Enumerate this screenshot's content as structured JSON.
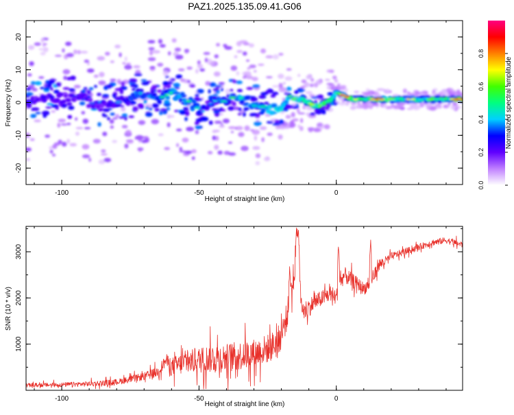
{
  "title": "PAZ1.2025.135.09.41.G06",
  "spectrogram": {
    "xlabel": "Height of straight line (km)",
    "ylabel": "Frequency (Hz)",
    "xlim": [
      -113,
      46
    ],
    "ylim": [
      -25,
      25
    ],
    "xticks": [
      -100,
      -50,
      0
    ],
    "yticks": [
      -20,
      -10,
      0,
      10,
      20
    ],
    "colorbar": {
      "label": "Normalized spectral amplitude",
      "range": [
        0,
        1
      ],
      "ticks": [
        "0.0",
        "0.2",
        "0.4",
        "0.6",
        "0.8"
      ],
      "ticks_values": [
        0,
        0.2,
        0.4,
        0.6,
        0.8
      ],
      "colors": [
        "#ffffff",
        "#c080ff",
        "#6000ff",
        "#0000ff",
        "#00d0ff",
        "#00ff80",
        "#40ff00",
        "#ffff00",
        "#ff8000",
        "#ff0000",
        "#ff0080"
      ]
    },
    "ridge": {
      "x": [
        -112,
        -105,
        -100,
        -95,
        -90,
        -85,
        -80,
        -75,
        -72,
        -65,
        -60,
        -57,
        -53,
        -50,
        -47,
        -43,
        -40,
        -37,
        -33,
        -30,
        -27,
        -25,
        -22,
        -20,
        -17,
        -15,
        -12,
        -10,
        -8,
        -6,
        -4,
        -2,
        0,
        3,
        6,
        10,
        15,
        20,
        25,
        30,
        35,
        40,
        46
      ],
      "y": [
        0,
        2,
        1,
        2,
        0,
        -1,
        0,
        1,
        3,
        1,
        3,
        2,
        0,
        -2,
        -1,
        1,
        0,
        2,
        1,
        -1,
        -1,
        -2,
        -2,
        -2,
        2,
        1,
        1,
        0,
        -1,
        -1,
        0,
        1,
        3,
        2,
        1,
        1,
        1,
        1,
        1,
        1,
        1,
        1,
        1
      ],
      "amplitude": [
        0.3,
        0.3,
        0.3,
        0.3,
        0.3,
        0.3,
        0.35,
        0.4,
        0.45,
        0.4,
        0.5,
        0.5,
        0.45,
        0.45,
        0.4,
        0.4,
        0.45,
        0.5,
        0.5,
        0.5,
        0.5,
        0.55,
        0.6,
        0.6,
        0.55,
        0.6,
        0.65,
        0.6,
        0.8,
        0.7,
        0.75,
        0.7,
        0.6,
        0.8,
        0.75,
        0.7,
        0.75,
        0.65,
        0.65,
        0.65,
        0.7,
        0.75,
        0.8
      ]
    }
  },
  "chart_data": {
    "type": "line",
    "title": "",
    "xlabel": "Height of straight line (km)",
    "ylabel": "SNR (10 * v/v)",
    "xlim": [
      -113,
      46
    ],
    "ylim": [
      0,
      3550
    ],
    "xticks": [
      -100,
      -50,
      0
    ],
    "yticks": [
      1000,
      2000,
      3000
    ],
    "color": "#e8302a",
    "x": [
      -113,
      -100,
      -90,
      -80,
      -70,
      -65,
      -62,
      -60,
      -55,
      -50,
      -45,
      -40,
      -35,
      -30,
      -25,
      -22,
      -20,
      -18,
      -16,
      -15,
      -14,
      -13,
      -12,
      -10,
      -8,
      -5,
      -2,
      0,
      1,
      3,
      5,
      8,
      10,
      12,
      14,
      15,
      18,
      20,
      25,
      30,
      35,
      40,
      46
    ],
    "y": [
      110,
      120,
      140,
      180,
      300,
      400,
      650,
      500,
      600,
      650,
      700,
      700,
      750,
      800,
      900,
      1000,
      1200,
      1600,
      2200,
      2800,
      3500,
      2000,
      1700,
      1800,
      1900,
      2000,
      2100,
      2000,
      2300,
      2500,
      2400,
      2300,
      2200,
      2300,
      2500,
      2700,
      2800,
      2900,
      3000,
      3100,
      3200,
      3250,
      3150
    ],
    "noise": [
      60,
      70,
      80,
      90,
      120,
      160,
      200,
      300,
      350,
      400,
      450,
      450,
      450,
      450,
      450,
      450,
      450,
      450,
      500,
      500,
      400,
      300,
      300,
      300,
      250,
      250,
      250,
      250,
      250,
      250,
      250,
      200,
      200,
      200,
      200,
      200,
      150,
      120,
      100,
      100,
      100,
      100,
      100
    ],
    "spikes": [
      {
        "x": -17,
        "y": 2680
      },
      {
        "x": -14.5,
        "y": 3550
      },
      {
        "x": -13.8,
        "y": 3500
      },
      {
        "x": 0.8,
        "y": 3180
      },
      {
        "x": 12.5,
        "y": 3300
      }
    ]
  }
}
